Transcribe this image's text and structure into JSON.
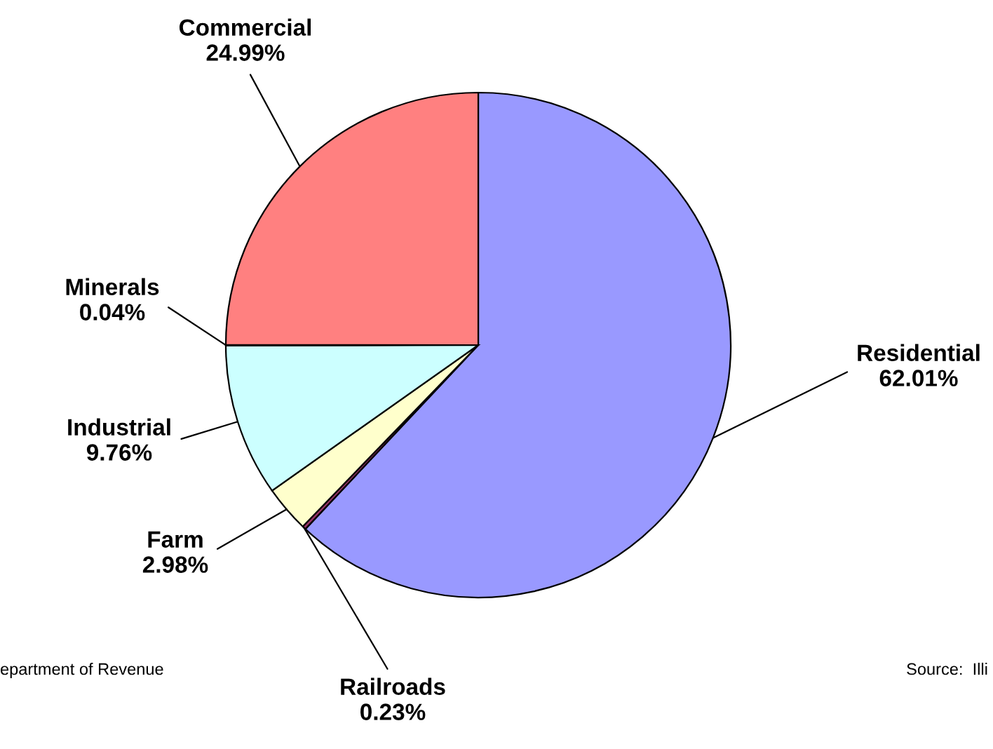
{
  "chart_data": {
    "type": "pie",
    "categories": [
      "Residential",
      "Railroads",
      "Farm",
      "Industrial",
      "Minerals",
      "Commercial"
    ],
    "values": [
      62.01,
      0.23,
      2.98,
      9.76,
      0.04,
      24.99
    ],
    "value_labels": [
      "62.01%",
      "0.23%",
      "2.98%",
      "9.76%",
      "0.04%",
      "24.99%"
    ],
    "colors": [
      "#9999ff",
      "#993366",
      "#ffffcc",
      "#ccffff",
      "#a0a0a0",
      "#ff8080"
    ],
    "annotations": [
      "epartment of Revenue",
      "Source:  Illi"
    ],
    "legend": false
  }
}
